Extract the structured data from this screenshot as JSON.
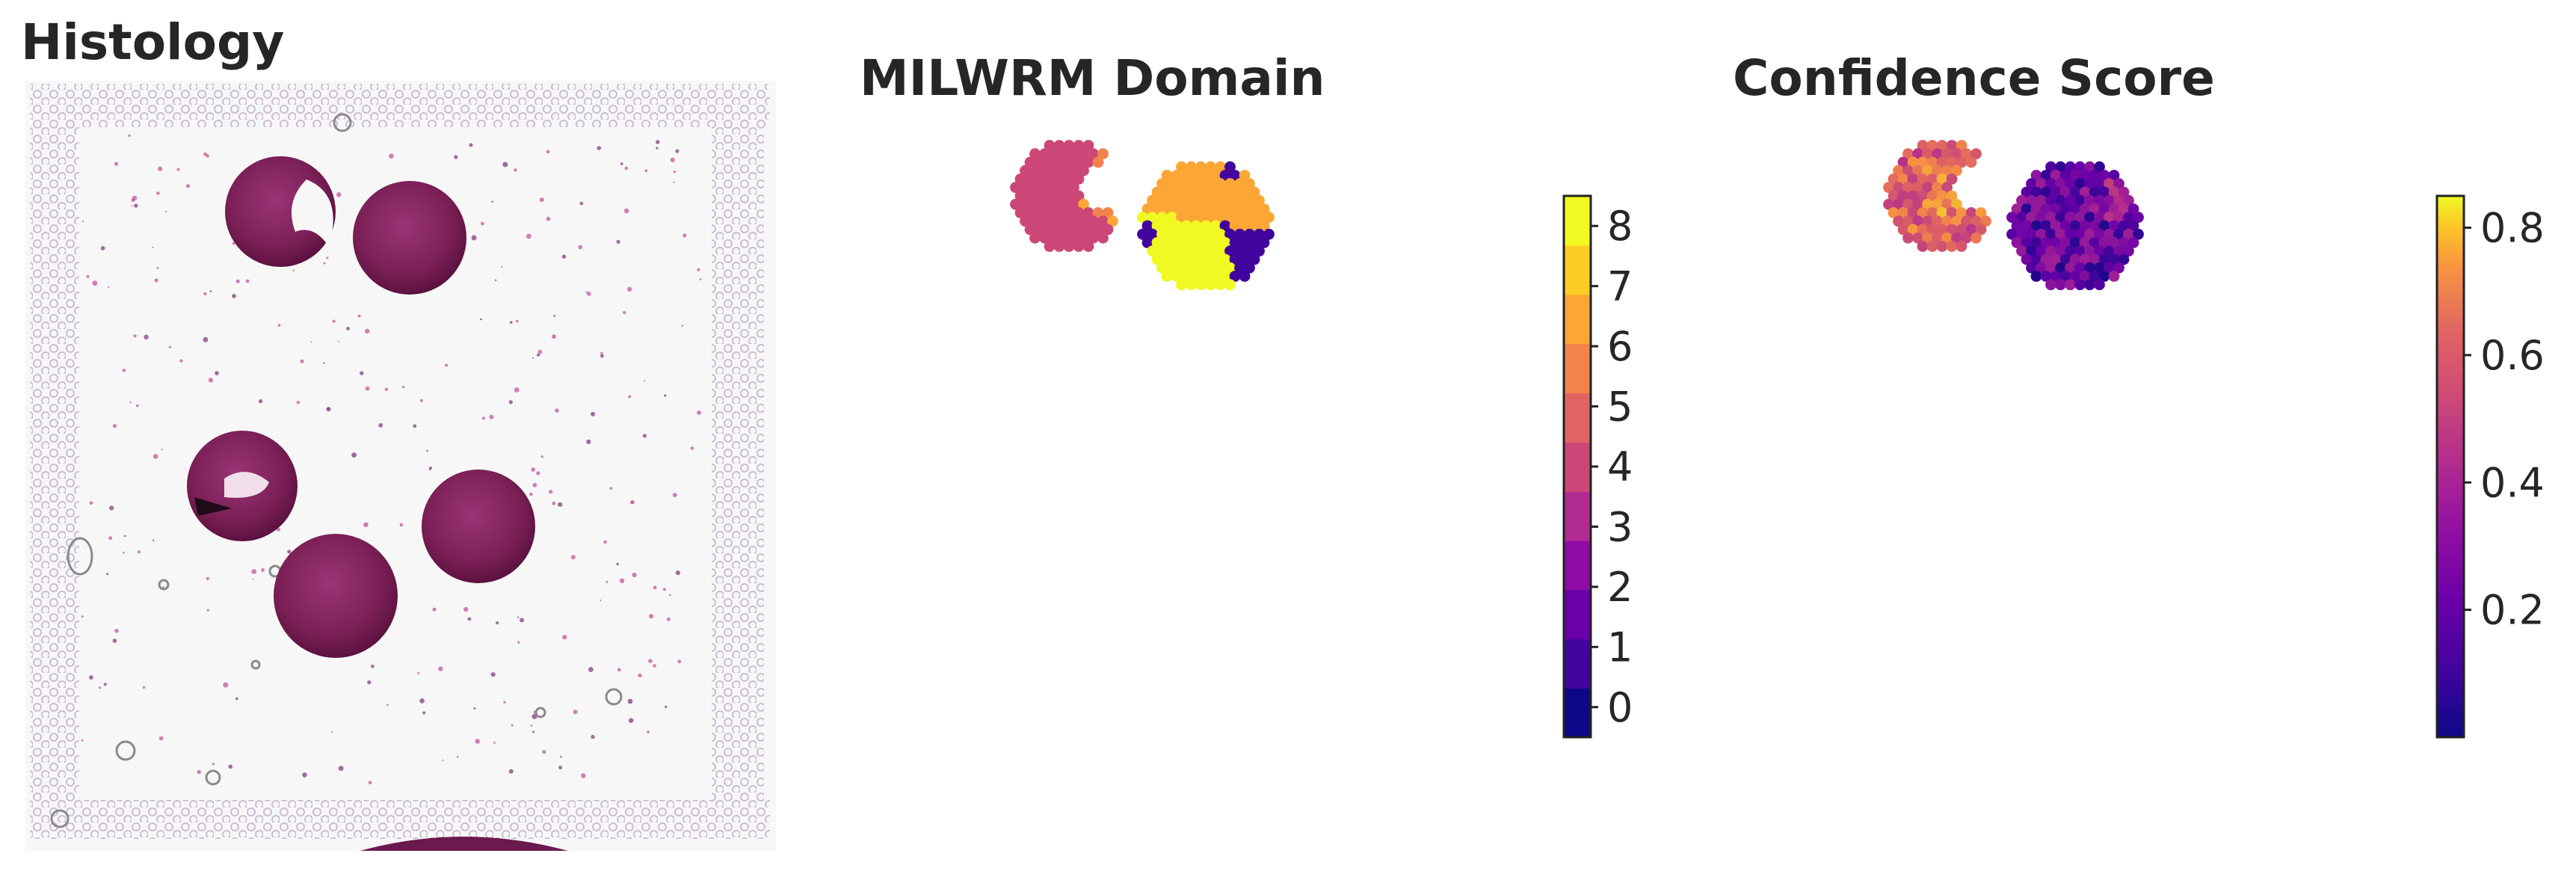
{
  "panels": {
    "histology": {
      "title": "Histology"
    },
    "domain": {
      "title": "MILWRM Domain"
    },
    "confidence": {
      "title": "Confidence Score"
    }
  },
  "chart_data": [
    {
      "type": "image",
      "title": "Histology",
      "description": "H&E stained tissue section with five circular tissue cores on a Visium capture area with fiducial spot frame"
    },
    {
      "type": "heatmap",
      "title": "MILWRM Domain",
      "colorbar": {
        "kind": "discrete",
        "ticks": [
          0,
          1,
          2,
          3,
          4,
          5,
          6,
          7,
          8
        ],
        "range": [
          -0.5,
          8.5
        ],
        "colors": [
          "#0d0887",
          "#41049d",
          "#6a00a8",
          "#8f0da4",
          "#b12a90",
          "#cc4778",
          "#e16462",
          "#f2844b",
          "#fca636",
          "#fcce25",
          "#f0f921"
        ]
      },
      "spot_groups": [
        {
          "region": "left core (pac-man shape)",
          "domain": 4
        },
        {
          "region": "left core notch edge",
          "domain": 6
        },
        {
          "region": "left core notch edge",
          "domain": 1
        },
        {
          "region": "right core upper half",
          "domain": 6
        },
        {
          "region": "right core lower half",
          "domain": 8
        },
        {
          "region": "right core lower-right wedge",
          "domain": 1
        },
        {
          "region": "right core left edge",
          "domain": 1
        }
      ]
    },
    {
      "type": "heatmap",
      "title": "Confidence Score",
      "colorbar": {
        "kind": "continuous",
        "colormap": "plasma",
        "ticks": [
          0.2,
          0.4,
          0.6,
          0.8
        ],
        "range": [
          0.0,
          0.85
        ]
      },
      "spot_groups": [
        {
          "region": "left core",
          "approx_score_range": [
            0.55,
            0.85
          ]
        },
        {
          "region": "right core",
          "approx_score_range": [
            0.05,
            0.45
          ]
        }
      ]
    }
  ],
  "colorbar_domain": {
    "labels": [
      "0",
      "1",
      "2",
      "3",
      "4",
      "5",
      "6",
      "7",
      "8"
    ]
  },
  "colorbar_confidence": {
    "labels": [
      "0.2",
      "0.4",
      "0.6",
      "0.8"
    ]
  },
  "colors": {
    "tissue_dark": "#6b1a4d",
    "tissue_mid": "#8e2a6a",
    "background": "#f6f6f7",
    "fiducial": "#cdbcd4"
  }
}
